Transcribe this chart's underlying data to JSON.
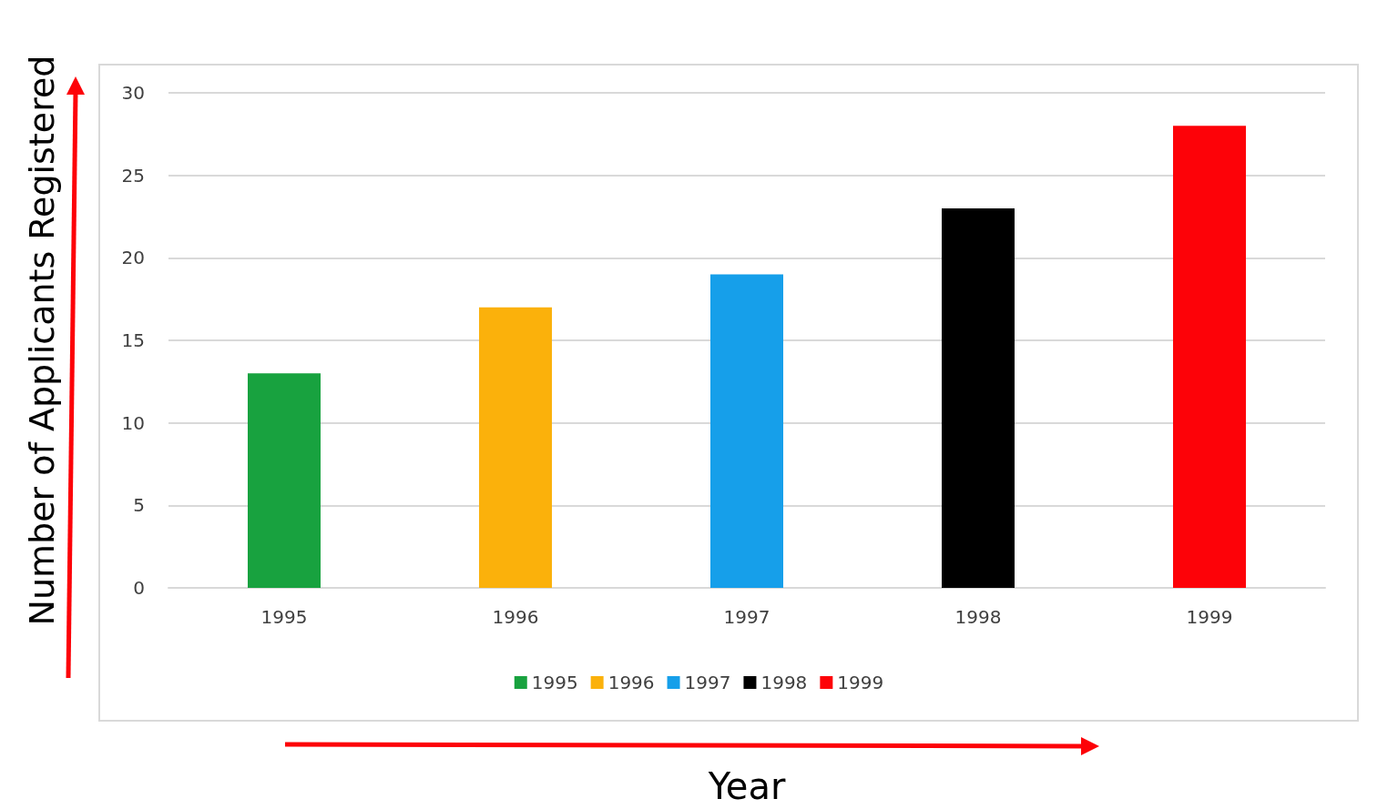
{
  "chart_data": {
    "type": "bar",
    "xlabel": "Year",
    "ylabel": "Number of Applicants Registered",
    "categories": [
      "1995",
      "1996",
      "1997",
      "1998",
      "1999"
    ],
    "series": [
      {
        "name": "1995",
        "color": "#18a23f",
        "values": [
          13,
          null,
          null,
          null,
          null
        ]
      },
      {
        "name": "1996",
        "color": "#fbb10b",
        "values": [
          null,
          17,
          null,
          null,
          null
        ]
      },
      {
        "name": "1997",
        "color": "#169fea",
        "values": [
          null,
          null,
          19,
          null,
          null
        ]
      },
      {
        "name": "1998",
        "color": "#000000",
        "values": [
          null,
          null,
          null,
          23,
          null
        ]
      },
      {
        "name": "1999",
        "color": "#fd0208",
        "values": [
          null,
          null,
          null,
          null,
          28
        ]
      }
    ],
    "ylim": [
      0,
      30
    ],
    "yticks": [
      0,
      5,
      10,
      15,
      20,
      25,
      30
    ],
    "grid": "y",
    "legend": "bottom"
  }
}
